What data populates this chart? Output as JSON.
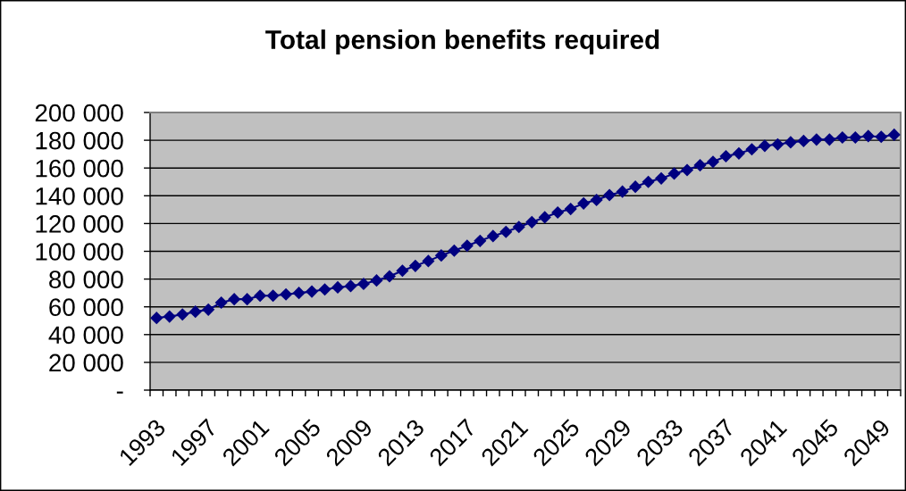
{
  "chart_data": {
    "type": "line",
    "title": "Total pension benefits required",
    "categories": [
      "1993",
      null,
      null,
      null,
      "1997",
      null,
      null,
      null,
      "2001",
      null,
      null,
      null,
      "2005",
      null,
      null,
      null,
      "2009",
      null,
      null,
      null,
      "2013",
      null,
      null,
      null,
      "2017",
      null,
      null,
      null,
      "2021",
      null,
      null,
      null,
      "2025",
      null,
      null,
      null,
      "2029",
      null,
      null,
      null,
      "2033",
      null,
      null,
      null,
      "2037",
      null,
      null,
      null,
      "2041",
      null,
      null,
      null,
      "2045",
      null,
      null,
      null,
      "2049",
      null
    ],
    "values": [
      52000,
      53000,
      54500,
      56500,
      58000,
      63000,
      65500,
      65500,
      68000,
      68000,
      69000,
      70000,
      71000,
      72500,
      74000,
      75000,
      76500,
      79000,
      82000,
      86000,
      89500,
      93000,
      97000,
      100500,
      104000,
      107500,
      111000,
      114000,
      117500,
      121000,
      124500,
      128000,
      130500,
      134500,
      137000,
      140500,
      143000,
      146500,
      150000,
      152500,
      156000,
      158500,
      162000,
      164500,
      168500,
      170500,
      173500,
      176000,
      177000,
      178500,
      179500,
      180500,
      180500,
      182000,
      182000,
      183000,
      182500,
      184000
    ],
    "color": "#000080",
    "marker": "diamond",
    "line_style": "solid",
    "ylim": [
      0,
      200000
    ],
    "yticks": [
      {
        "value": 0,
        "label": "-"
      },
      {
        "value": 20000,
        "label": "20 000"
      },
      {
        "value": 40000,
        "label": "40 000"
      },
      {
        "value": 60000,
        "label": "60 000"
      },
      {
        "value": 80000,
        "label": "80 000"
      },
      {
        "value": 100000,
        "label": "100 000"
      },
      {
        "value": 120000,
        "label": "120 000"
      },
      {
        "value": 140000,
        "label": "140 000"
      },
      {
        "value": 160000,
        "label": "160 000"
      },
      {
        "value": 180000,
        "label": "180 000"
      },
      {
        "value": 200000,
        "label": "200 000"
      }
    ],
    "grid": "y"
  }
}
